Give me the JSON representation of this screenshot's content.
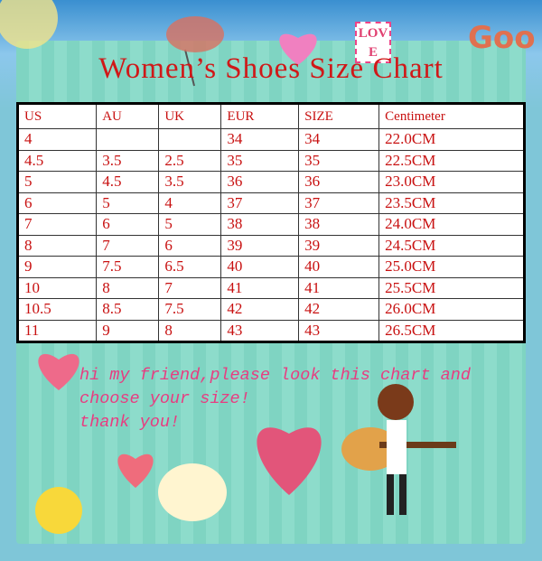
{
  "header": {
    "title": "Women’s Shoes Size Chart",
    "logo": "Goo",
    "sticker": "LOVE"
  },
  "table": {
    "columns": [
      "US",
      "AU",
      "UK",
      "EUR",
      "SIZE",
      "Centimeter"
    ],
    "rows": [
      [
        "4",
        null,
        null,
        "34",
        "34",
        "22.0CM"
      ],
      [
        "4.5",
        "3.5",
        "2.5",
        "35",
        "35",
        "22.5CM"
      ],
      [
        "5",
        "4.5",
        "3.5",
        "36",
        "36",
        "23.0CM"
      ],
      [
        "6",
        "5",
        "4",
        "37",
        "37",
        "23.5CM"
      ],
      [
        "7",
        "6",
        "5",
        "38",
        "38",
        "24.0CM"
      ],
      [
        "8",
        "7",
        "6",
        "39",
        "39",
        "24.5CM"
      ],
      [
        "9",
        "7.5",
        "6.5",
        "40",
        "40",
        "25.0CM"
      ],
      [
        "10",
        "8",
        "7",
        "41",
        "41",
        "25.5CM"
      ],
      [
        "10.5",
        "8.5",
        "7.5",
        "42",
        "42",
        "26.0CM"
      ],
      [
        "11",
        "9",
        "8",
        "43",
        "43",
        "26.5CM"
      ]
    ]
  },
  "message": {
    "lines": [
      "hi my friend,please look this chart and",
      "choose your size!",
      "thank you!"
    ]
  }
}
